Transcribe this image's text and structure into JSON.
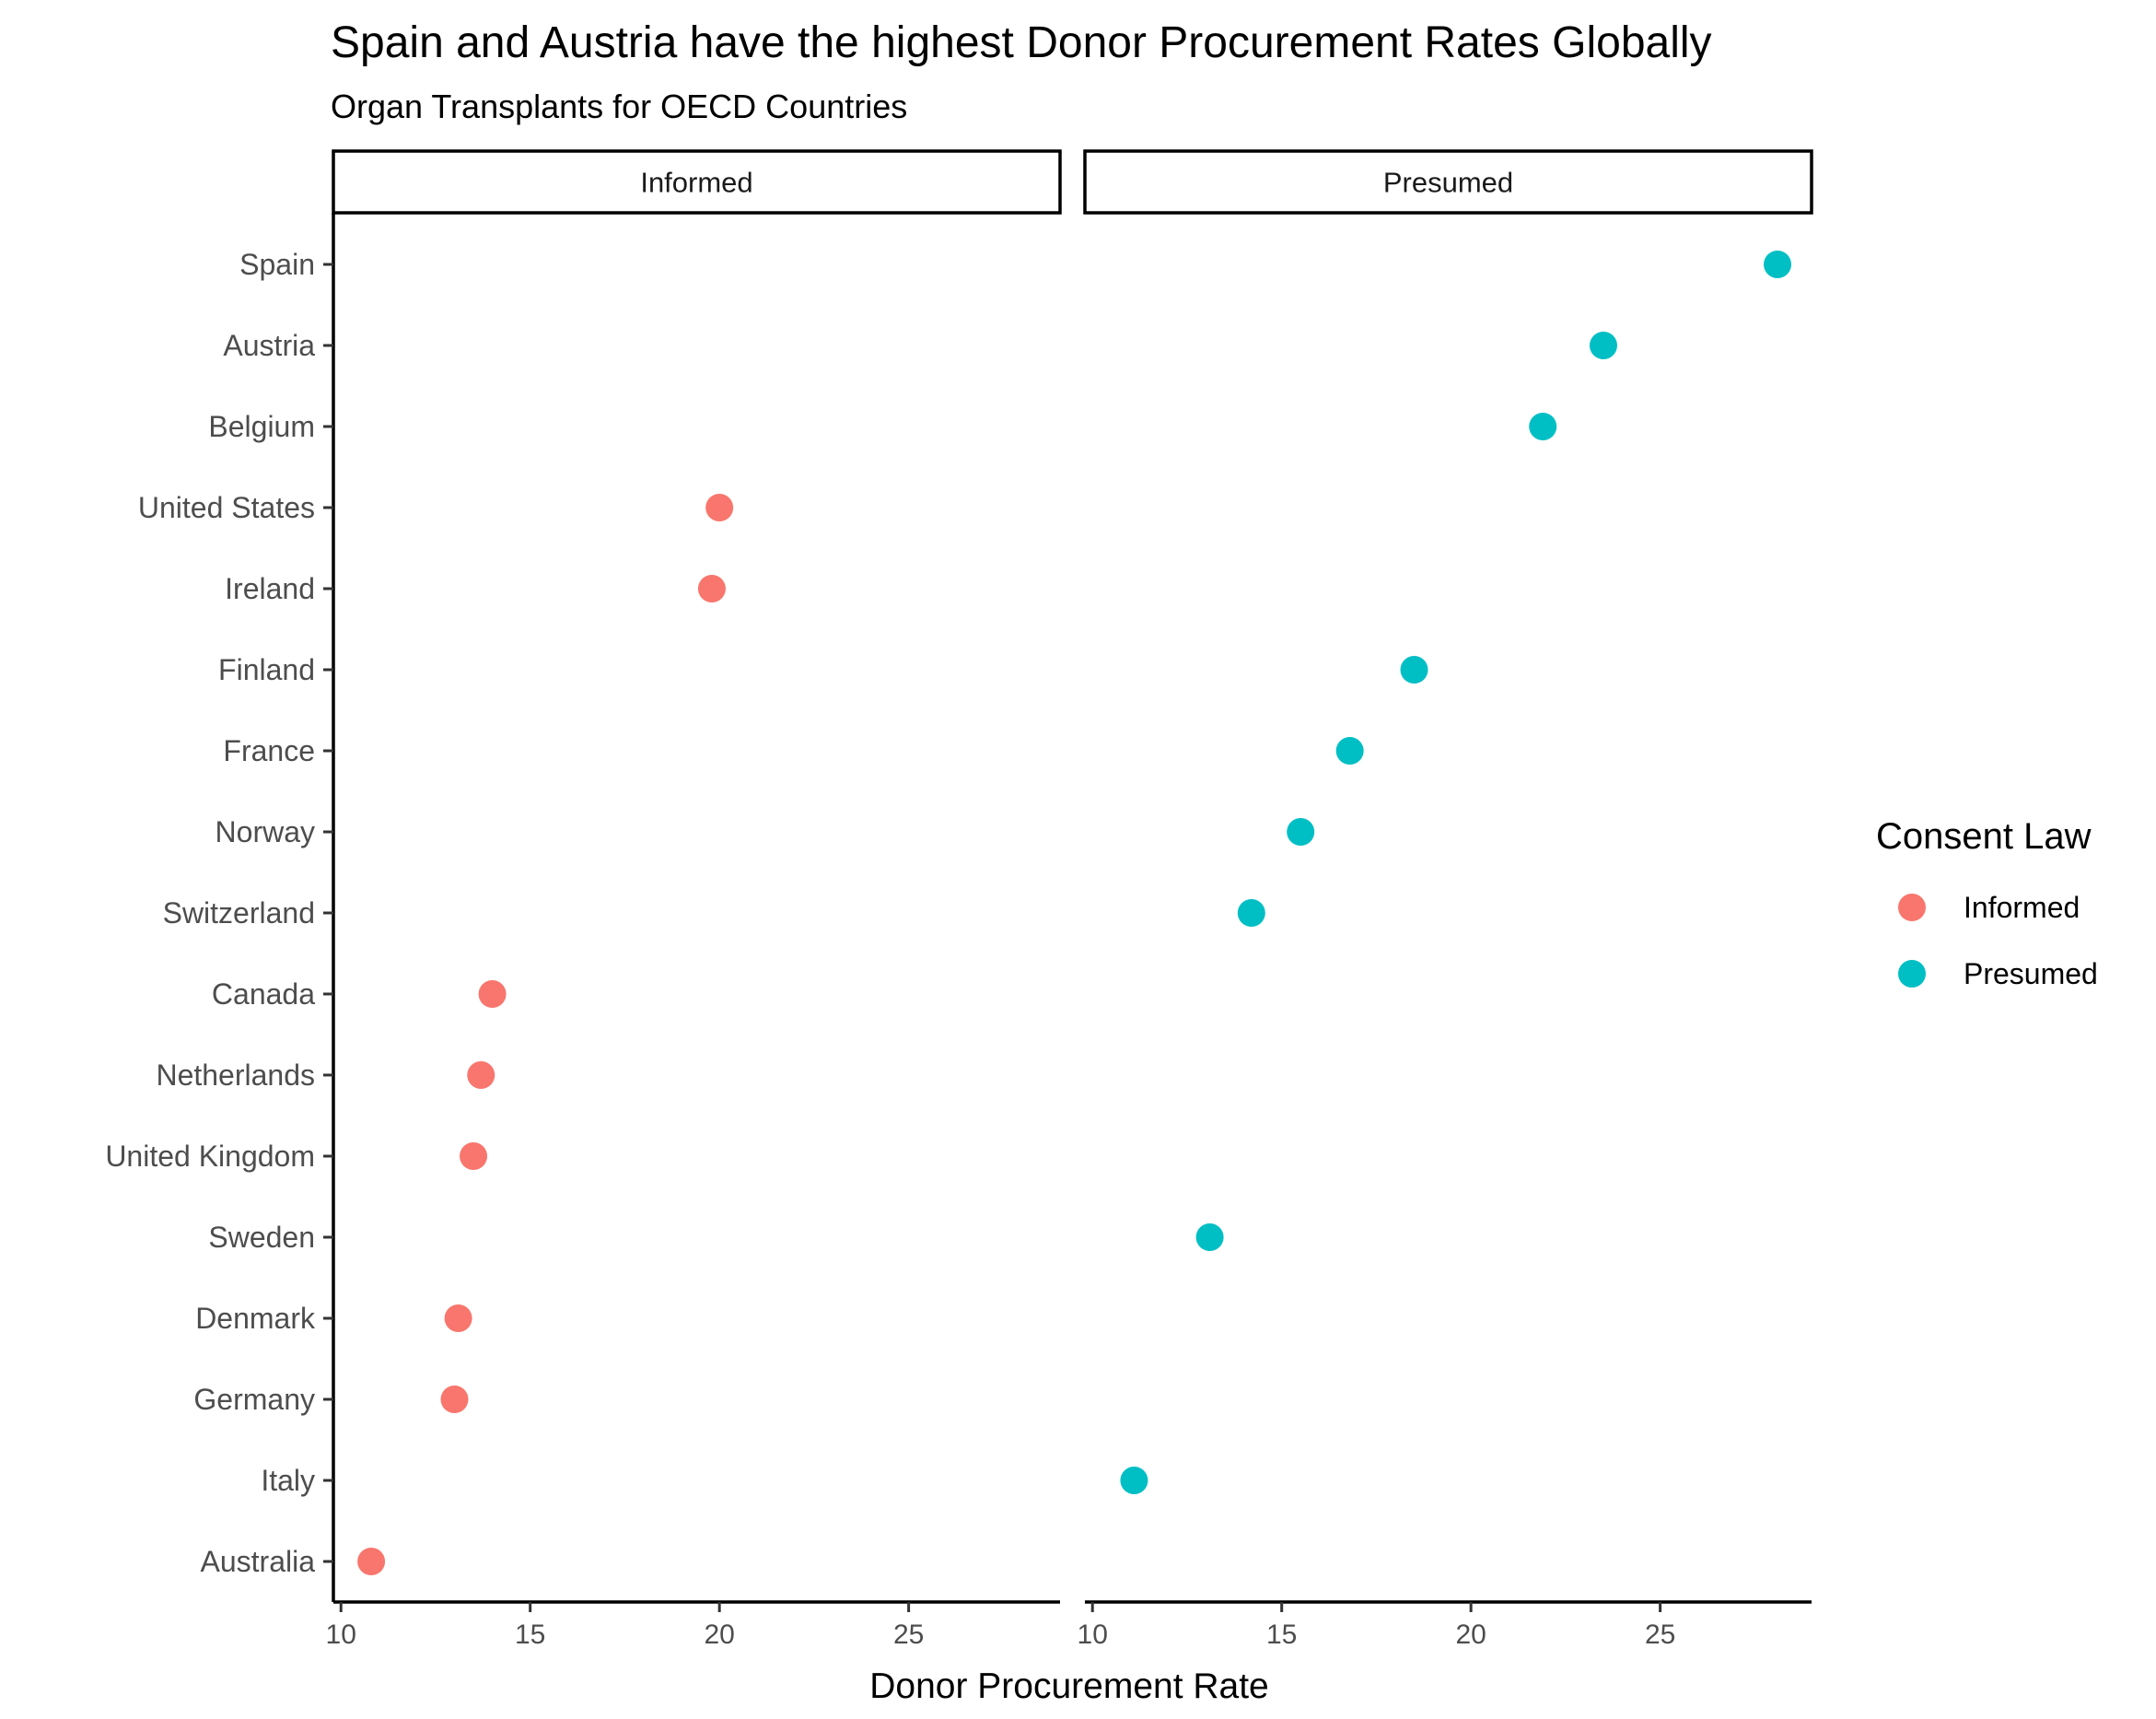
{
  "chart_data": {
    "type": "scatter",
    "title": "Spain and Austria have the highest Donor Procurement Rates Globally",
    "subtitle": "Organ Transplants for OECD Countries",
    "xlabel": "Donor Procurement Rate",
    "ylabel": "",
    "xlim": [
      9.8,
      29.0
    ],
    "x_ticks": [
      10,
      15,
      20,
      25
    ],
    "x_tick_labels": [
      "10",
      "15",
      "20",
      "25"
    ],
    "grid": false,
    "facets": [
      "Informed",
      "Presumed"
    ],
    "legend": {
      "title": "Consent Law",
      "position": "right",
      "entries": [
        "Informed",
        "Presumed"
      ]
    },
    "colors": {
      "Informed": "#F8766D",
      "Presumed": "#00BFC4"
    },
    "categories": [
      "Spain",
      "Austria",
      "Belgium",
      "United States",
      "Ireland",
      "Finland",
      "France",
      "Norway",
      "Switzerland",
      "Canada",
      "Netherlands",
      "United Kingdom",
      "Sweden",
      "Denmark",
      "Germany",
      "Italy",
      "Australia"
    ],
    "points": [
      {
        "country": "Spain",
        "consent": "Presumed",
        "value": 28.1
      },
      {
        "country": "Austria",
        "consent": "Presumed",
        "value": 23.5
      },
      {
        "country": "Belgium",
        "consent": "Presumed",
        "value": 21.9
      },
      {
        "country": "United States",
        "consent": "Informed",
        "value": 20.0
      },
      {
        "country": "Ireland",
        "consent": "Informed",
        "value": 19.8
      },
      {
        "country": "Finland",
        "consent": "Presumed",
        "value": 18.5
      },
      {
        "country": "France",
        "consent": "Presumed",
        "value": 16.8
      },
      {
        "country": "Norway",
        "consent": "Presumed",
        "value": 15.5
      },
      {
        "country": "Switzerland",
        "consent": "Presumed",
        "value": 14.2
      },
      {
        "country": "Canada",
        "consent": "Informed",
        "value": 14.0
      },
      {
        "country": "Netherlands",
        "consent": "Informed",
        "value": 13.7
      },
      {
        "country": "United Kingdom",
        "consent": "Informed",
        "value": 13.5
      },
      {
        "country": "Sweden",
        "consent": "Presumed",
        "value": 13.1
      },
      {
        "country": "Denmark",
        "consent": "Informed",
        "value": 13.1
      },
      {
        "country": "Germany",
        "consent": "Informed",
        "value": 13.0
      },
      {
        "country": "Italy",
        "consent": "Presumed",
        "value": 11.1
      },
      {
        "country": "Australia",
        "consent": "Informed",
        "value": 10.8
      }
    ]
  }
}
